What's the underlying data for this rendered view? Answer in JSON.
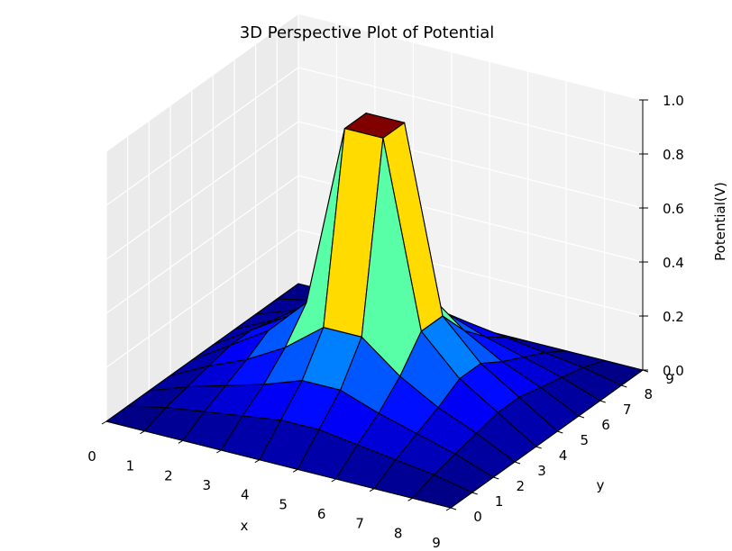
{
  "chart_data": {
    "type": "surface3d",
    "title": "3D Perspective Plot of Potential",
    "xlabel": "x",
    "ylabel": "y",
    "zlabel": "Potential(V)",
    "xlim": [
      0,
      9
    ],
    "ylim": [
      0,
      9
    ],
    "zlim": [
      0,
      1.0
    ],
    "x_ticks": [
      "0",
      "1",
      "2",
      "3",
      "4",
      "5",
      "6",
      "7",
      "8",
      "9"
    ],
    "y_ticks": [
      "0",
      "1",
      "2",
      "3",
      "4",
      "5",
      "6",
      "7",
      "8",
      "9"
    ],
    "z_ticks": [
      "0.0",
      "0.2",
      "0.4",
      "0.6",
      "0.8",
      "1.0"
    ],
    "x": [
      0,
      1,
      2,
      3,
      4,
      5,
      6,
      7,
      8,
      9
    ],
    "y": [
      0,
      1,
      2,
      3,
      4,
      5,
      6,
      7,
      8,
      9
    ],
    "colormap": "jet",
    "grid": true,
    "z": [
      [
        0.0,
        0.0,
        0.0,
        0.0,
        0.0,
        0.0,
        0.0,
        0.0,
        0.0,
        0.0
      ],
      [
        0.0,
        0.03,
        0.05,
        0.07,
        0.09,
        0.09,
        0.07,
        0.05,
        0.03,
        0.0
      ],
      [
        0.0,
        0.05,
        0.09,
        0.13,
        0.18,
        0.18,
        0.13,
        0.09,
        0.05,
        0.0
      ],
      [
        0.0,
        0.07,
        0.13,
        0.21,
        0.32,
        0.32,
        0.21,
        0.13,
        0.07,
        0.0
      ],
      [
        0.0,
        0.09,
        0.18,
        0.32,
        1.0,
        1.0,
        0.32,
        0.18,
        0.09,
        0.0
      ],
      [
        0.0,
        0.09,
        0.18,
        0.32,
        1.0,
        1.0,
        0.32,
        0.18,
        0.09,
        0.0
      ],
      [
        0.0,
        0.07,
        0.13,
        0.21,
        0.32,
        0.32,
        0.21,
        0.13,
        0.07,
        0.0
      ],
      [
        0.0,
        0.05,
        0.09,
        0.13,
        0.18,
        0.18,
        0.13,
        0.09,
        0.05,
        0.0
      ],
      [
        0.0,
        0.03,
        0.05,
        0.07,
        0.09,
        0.09,
        0.07,
        0.05,
        0.03,
        0.0
      ],
      [
        0.0,
        0.0,
        0.0,
        0.0,
        0.0,
        0.0,
        0.0,
        0.0,
        0.0,
        0.0
      ]
    ]
  }
}
